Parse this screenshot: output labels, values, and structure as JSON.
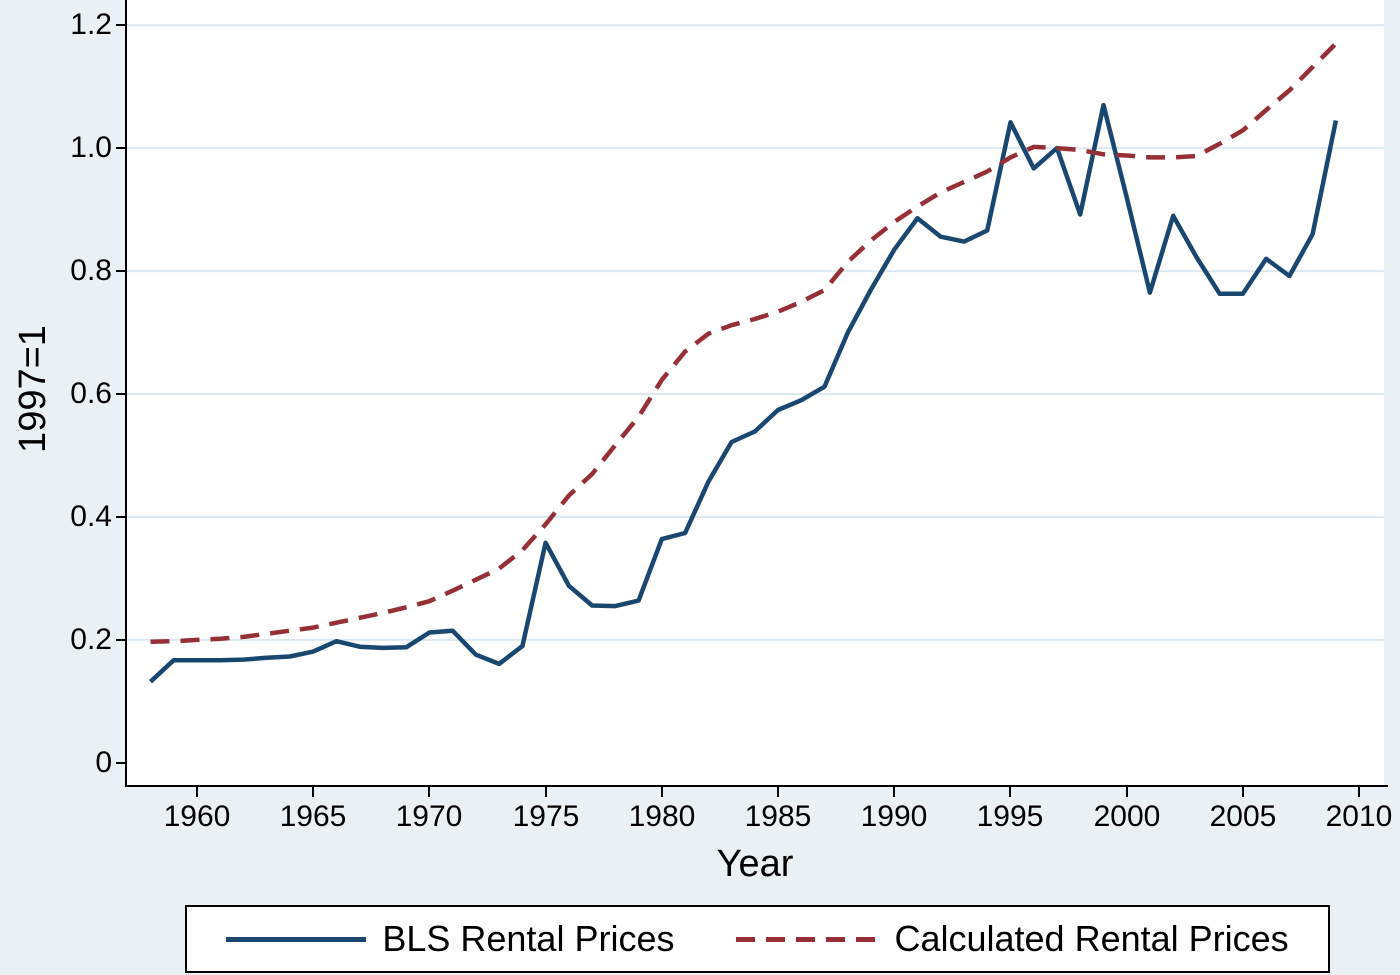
{
  "figure": {
    "background_color": "#eaf1f5",
    "plot_background_color": "#ffffff",
    "grid_color": "#dde9f1",
    "axis_color": "#000000"
  },
  "x_axis": {
    "title": "Year",
    "tick_labels": [
      "1960",
      "1965",
      "1970",
      "1975",
      "1980",
      "1985",
      "1990",
      "1995",
      "2000",
      "2005",
      "2010"
    ],
    "tick_values": [
      1960,
      1965,
      1970,
      1975,
      1980,
      1985,
      1990,
      1995,
      2000,
      2005,
      2010
    ]
  },
  "y_axis": {
    "title": "1997=1",
    "tick_labels": [
      "0",
      "0.2",
      "0.4",
      "0.6",
      "0.8",
      "1.0",
      "1.2"
    ],
    "tick_values": [
      0,
      0.2,
      0.4,
      0.6,
      0.8,
      1.0,
      1.2
    ]
  },
  "legend": {
    "entries": [
      {
        "label": "BLS Rental Prices",
        "color": "#1a476f",
        "style": "solid"
      },
      {
        "label": "Calculated Rental Prices",
        "color": "#962f36",
        "style": "dashed"
      }
    ]
  },
  "chart_data": {
    "type": "line",
    "title": "",
    "xlabel": "Year",
    "ylabel": "1997=1",
    "grid": true,
    "legend_position": "bottom",
    "xlim": [
      1956.99,
      2011.07
    ],
    "ylim": [
      -0.036,
      1.241
    ],
    "x_ticks": [
      1960,
      1965,
      1970,
      1975,
      1980,
      1985,
      1990,
      1995,
      2000,
      2005,
      2010
    ],
    "y_ticks": [
      0,
      0.2,
      0.4,
      0.6,
      0.8,
      1.0,
      1.2
    ],
    "x": [
      1958,
      1959,
      1960,
      1961,
      1962,
      1963,
      1964,
      1965,
      1966,
      1967,
      1968,
      1969,
      1970,
      1971,
      1972,
      1973,
      1974,
      1975,
      1976,
      1977,
      1978,
      1979,
      1980,
      1981,
      1982,
      1983,
      1984,
      1985,
      1986,
      1987,
      1988,
      1989,
      1990,
      1991,
      1992,
      1993,
      1994,
      1995,
      1996,
      1997,
      1998,
      1999,
      2000,
      2001,
      2002,
      2003,
      2004,
      2005,
      2006,
      2007,
      2008,
      2009
    ],
    "series": [
      {
        "name": "BLS Rental Prices",
        "color": "#1a476f",
        "style": "solid",
        "values": [
          0.132,
          0.167,
          0.167,
          0.167,
          0.168,
          0.171,
          0.173,
          0.181,
          0.198,
          0.189,
          0.187,
          0.188,
          0.212,
          0.215,
          0.176,
          0.161,
          0.19,
          0.358,
          0.288,
          0.256,
          0.255,
          0.264,
          0.364,
          0.374,
          0.457,
          0.522,
          0.539,
          0.574,
          0.59,
          0.612,
          0.7,
          0.77,
          0.835,
          0.886,
          0.856,
          0.848,
          0.866,
          1.042,
          0.967,
          1.0,
          0.892,
          1.07,
          0.92,
          0.765,
          0.89,
          0.823,
          0.763,
          0.763,
          0.82,
          0.792,
          0.86,
          1.045
        ]
      },
      {
        "name": "Calculated Rental Prices",
        "color": "#962f36",
        "style": "dashed",
        "values": [
          0.197,
          0.198,
          0.2,
          0.202,
          0.205,
          0.21,
          0.215,
          0.22,
          0.228,
          0.236,
          0.244,
          0.253,
          0.263,
          0.28,
          0.298,
          0.316,
          0.346,
          0.388,
          0.435,
          0.47,
          0.517,
          0.563,
          0.623,
          0.669,
          0.698,
          0.712,
          0.722,
          0.734,
          0.75,
          0.769,
          0.815,
          0.85,
          0.88,
          0.905,
          0.928,
          0.945,
          0.962,
          0.985,
          1.002,
          1.0,
          0.997,
          0.99,
          0.988,
          0.985,
          0.985,
          0.987,
          1.007,
          1.029,
          1.062,
          1.094,
          1.132,
          1.17
        ]
      }
    ]
  }
}
